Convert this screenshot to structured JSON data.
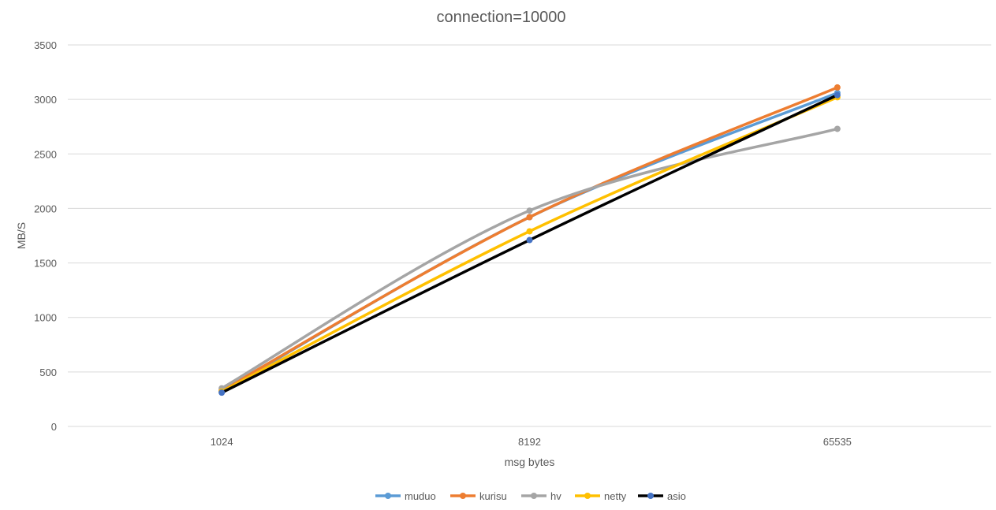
{
  "chart_data": {
    "type": "line",
    "title": "connection=10000",
    "xlabel": "msg bytes",
    "ylabel": "MB/S",
    "categories": [
      "1024",
      "8192",
      "65535"
    ],
    "ylim": [
      0,
      3500
    ],
    "yticks": [
      0,
      500,
      1000,
      1500,
      2000,
      2500,
      3000,
      3500
    ],
    "grid": true,
    "smooth": true,
    "legend_position": "bottom",
    "series": [
      {
        "name": "muduo",
        "values": [
          320,
          1920,
          3060
        ],
        "color": "#5B9BD5"
      },
      {
        "name": "kurisu",
        "values": [
          330,
          1920,
          3110
        ],
        "color": "#ED7D31"
      },
      {
        "name": "hv",
        "values": [
          350,
          1980,
          2730
        ],
        "color": "#A5A5A5"
      },
      {
        "name": "netty",
        "values": [
          320,
          1790,
          3020
        ],
        "color": "#FFC000"
      },
      {
        "name": "asio",
        "values": [
          310,
          1710,
          3040
        ],
        "color": "#000000",
        "marker_color": "#4472C4"
      }
    ]
  }
}
